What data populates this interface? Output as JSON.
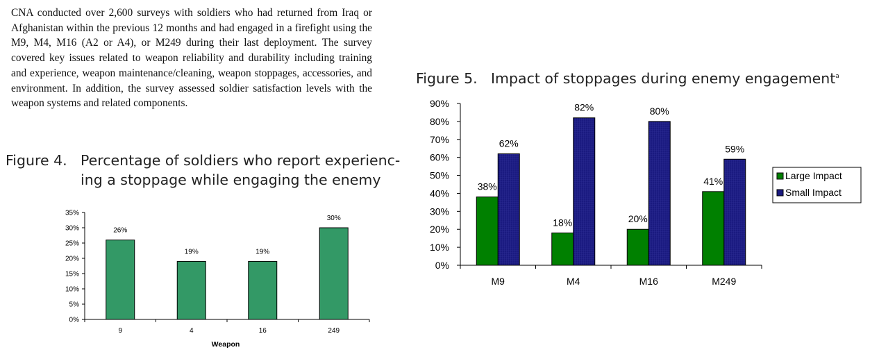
{
  "paragraph": "CNA conducted over 2,600 surveys with soldiers who had returned from Iraq or Afghanistan within the previous 12 months and had engaged in a firefight using the M9, M4, M16 (A2 or A4), or M249 during their last deployment. The survey covered key issues related to weapon reliability and durability including training and experience, weapon maintenance/cleaning, weapon stoppages, accessories, and environment. In addition, the survey assessed soldier satisfaction levels with the weapon systems and related components.",
  "figure4": {
    "number": "Figure 4.",
    "title_line1": "Percentage of soldiers who report experienc-",
    "title_line2": "ing a stoppage while engaging the enemy"
  },
  "figure5": {
    "number": "Figure 5.",
    "title": "Impact of stoppages during enemy engagement",
    "footnote_mark": "a"
  },
  "chart_data": [
    {
      "type": "bar",
      "categories": [
        "9",
        "4",
        "16",
        "249"
      ],
      "values": [
        26,
        19,
        19,
        30
      ],
      "data_labels": [
        "26%",
        "19%",
        "19%",
        "30%"
      ],
      "xlabel": "Weapon",
      "ylabel": "",
      "ylim": [
        0,
        35
      ],
      "yticks": [
        "0%",
        "5%",
        "10%",
        "15%",
        "20%",
        "25%",
        "30%",
        "35%"
      ],
      "grid": false,
      "colors": {
        "bar": "#339966",
        "axis": "#000000"
      }
    },
    {
      "type": "bar",
      "categories": [
        "M9",
        "M4",
        "M16",
        "M249"
      ],
      "series": [
        {
          "name": "Large Impact",
          "values": [
            38,
            18,
            20,
            41
          ],
          "labels": [
            "38%",
            "18%",
            "20%",
            "41%"
          ],
          "color": "#008000"
        },
        {
          "name": "Small Impact",
          "values": [
            62,
            82,
            80,
            59
          ],
          "labels": [
            "62%",
            "82%",
            "80%",
            "59%"
          ],
          "color": "#1a1a80"
        }
      ],
      "ylim": [
        0,
        90
      ],
      "yticks": [
        "0%",
        "10%",
        "20%",
        "30%",
        "40%",
        "50%",
        "60%",
        "70%",
        "80%",
        "90%"
      ],
      "grid": false,
      "legend_position": "right"
    }
  ]
}
